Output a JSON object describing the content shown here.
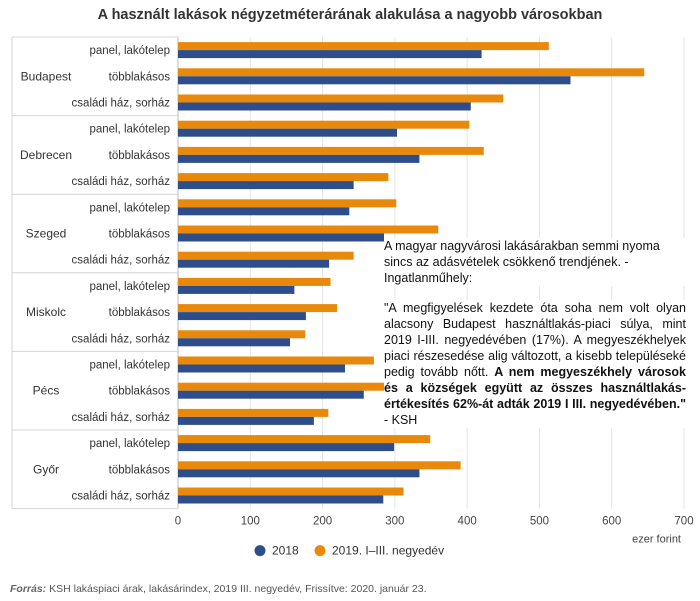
{
  "chart_data": {
    "type": "bar",
    "orientation": "horizontal",
    "title": "A használt lakások négyzetméterárának alakulása a nagyobb városokban",
    "groups": [
      {
        "city": "Budapest",
        "categories": [
          "panel, lakótelep",
          "többlakásos",
          "családi ház, sorház"
        ],
        "values_2018": [
          420,
          543,
          405
        ],
        "values_2019": [
          513,
          645,
          450
        ]
      },
      {
        "city": "Debrecen",
        "categories": [
          "panel, lakótelep",
          "többlakásos",
          "családi ház, sorház"
        ],
        "values_2018": [
          303,
          334,
          243
        ],
        "values_2019": [
          403,
          423,
          291
        ]
      },
      {
        "city": "Szeged",
        "categories": [
          "panel, lakótelep",
          "többlakásos",
          "családi ház, sorház"
        ],
        "values_2018": [
          237,
          285,
          209
        ],
        "values_2019": [
          302,
          360,
          243
        ]
      },
      {
        "city": "Miskolc",
        "categories": [
          "panel, lakótelep",
          "többlakásos",
          "családi ház, sorház"
        ],
        "values_2018": [
          161,
          177,
          155
        ],
        "values_2019": [
          211,
          220,
          176
        ]
      },
      {
        "city": "Pécs",
        "categories": [
          "panel, lakótelep",
          "többlakásos",
          "családi ház, sorház"
        ],
        "values_2018": [
          231,
          257,
          188
        ],
        "values_2019": [
          271,
          302,
          208
        ]
      },
      {
        "city": "Győr",
        "categories": [
          "panel, lakótelep",
          "többlakásos",
          "családi ház, sorház"
        ],
        "values_2018": [
          299,
          334,
          284
        ],
        "values_2019": [
          349,
          391,
          312
        ]
      }
    ],
    "series": [
      {
        "name": "2018",
        "color": "#2e4e8b"
      },
      {
        "name": "2019. I–III. negyedév",
        "color": "#e8890c"
      }
    ],
    "xlim": [
      0,
      700
    ],
    "xticks": [
      0,
      100,
      200,
      300,
      400,
      500,
      600,
      700
    ],
    "xlabel": "ezer forint",
    "legend_position": "bottom",
    "grid": "vertical"
  },
  "source": {
    "label": "Forrás:",
    "text": " KSH lakáspiaci árak, lakásárindex, 2019 III. negyedév, Frissítve: 2020. január 23."
  },
  "intro": "A magyar nagyvárosi lakásárakban semmi nyoma sincs az adásvételek csökkenő trendjének. - Ingatlanműhely:",
  "quote": {
    "part1": "\"A megfigyelések kezdete óta soha nem volt olyan alacsony Budapest használtlakás-piaci súlya, mint 2019 I-III. negyedévében (17%). A megyeszékhelyek piaci részesedése alig változott, a kisebb településeké pedig tovább nőtt. ",
    "bold": "A nem megyeszékhely városok és a községek együtt az összes használtlakás-értékesítés 62%-át adták 2019 I  III. negyedévében.\"",
    "part2": " - KSH"
  }
}
